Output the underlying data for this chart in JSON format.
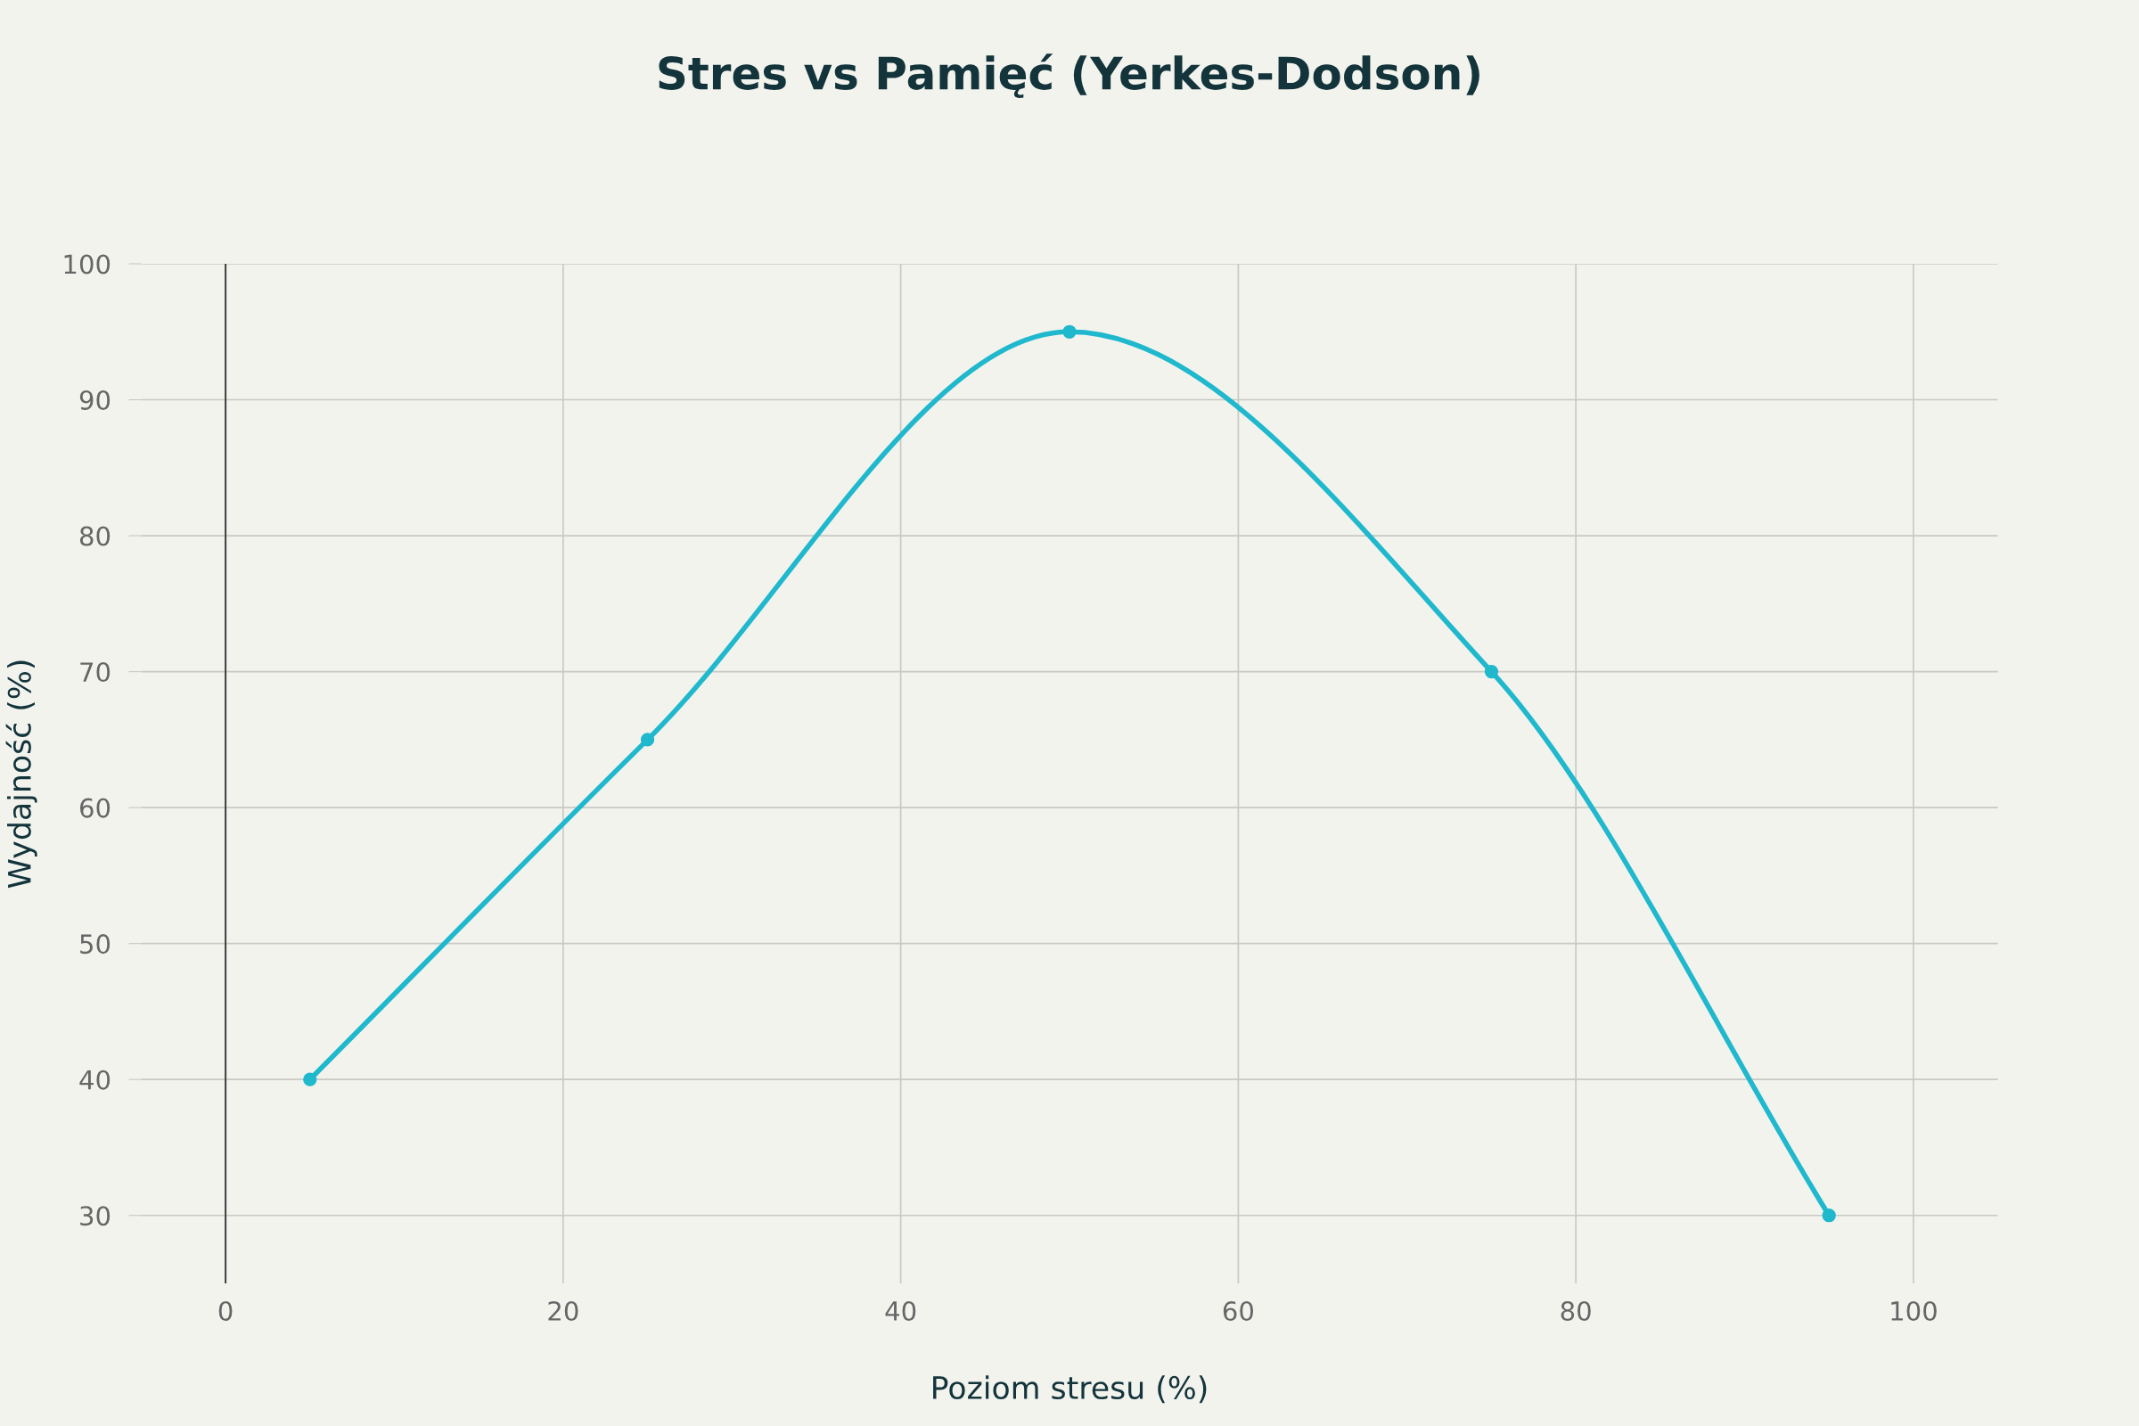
{
  "chart_data": {
    "type": "line",
    "title": "Stres vs Pamięć (Yerkes-Dodson)",
    "xlabel": "Poziom stresu (%)",
    "ylabel": "Wydajność (%)",
    "x": [
      5,
      25,
      50,
      75,
      95
    ],
    "series": [
      {
        "color": "#1fb8cd",
        "values": [
          40,
          65,
          95,
          70,
          30
        ]
      }
    ],
    "xlim": [
      -5,
      105
    ],
    "xticks": [
      0,
      20,
      40,
      60,
      80,
      100
    ],
    "ylim": [
      25,
      100
    ],
    "yticks": [
      30,
      40,
      50,
      60,
      70,
      80,
      90,
      100
    ],
    "grid": true,
    "marker": "circle",
    "line_style": "solid",
    "ref_lines": [
      {
        "axis": "x",
        "value": 0,
        "color": "#444444"
      }
    ]
  }
}
